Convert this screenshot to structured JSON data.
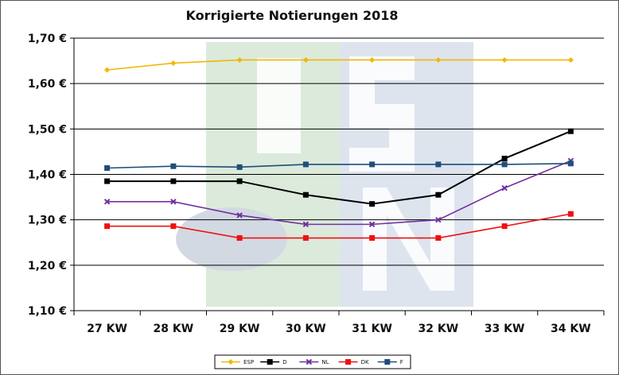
{
  "chart_data": {
    "type": "line",
    "title": "Korrigierte Notierungen 2018",
    "xlabel": "",
    "ylabel": "",
    "categories": [
      "27 KW",
      "28 KW",
      "29 KW",
      "30 KW",
      "31 KW",
      "32 KW",
      "33 KW",
      "34 KW"
    ],
    "yticks": [
      "1,10 €",
      "1,20 €",
      "1,30 €",
      "1,40 €",
      "1,50 €",
      "1,60 €",
      "1,70 €"
    ],
    "ylim": [
      1.1,
      1.7
    ],
    "grid": true,
    "legend_position": "bottom",
    "series": [
      {
        "name": "ESP",
        "color": "#f2b705",
        "marker": "diamond",
        "values": [
          1.63,
          1.645,
          1.652,
          1.652,
          1.652,
          1.652,
          1.652,
          1.652
        ]
      },
      {
        "name": "D",
        "color": "#000000",
        "marker": "square",
        "values": [
          1.385,
          1.385,
          1.385,
          1.355,
          1.335,
          1.355,
          1.435,
          1.495
        ]
      },
      {
        "name": "NL",
        "color": "#7030a0",
        "marker": "cross",
        "values": [
          1.34,
          1.34,
          1.31,
          1.29,
          1.29,
          1.3,
          1.37,
          1.43
        ]
      },
      {
        "name": "DK",
        "color": "#ee1111",
        "marker": "square",
        "values": [
          1.286,
          1.286,
          1.26,
          1.26,
          1.26,
          1.26,
          1.286,
          1.313
        ]
      },
      {
        "name": "F",
        "color": "#1f4e79",
        "marker": "square",
        "values": [
          1.414,
          1.418,
          1.416,
          1.422,
          1.422,
          1.422,
          1.422,
          1.424
        ]
      }
    ],
    "background_watermark": {
      "color_green": "#dbeadb",
      "color_blue": "#dde4ee"
    }
  }
}
